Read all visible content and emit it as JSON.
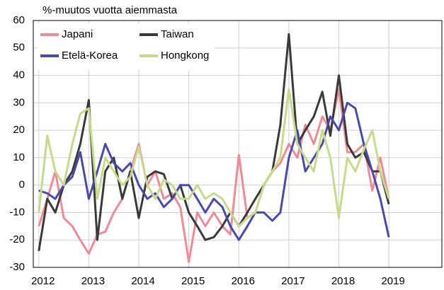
{
  "chart_data": {
    "type": "line",
    "ylabel": "%-muutos vuotta aiemmasta",
    "x": [
      2012,
      2012.17,
      2012.33,
      2012.5,
      2012.67,
      2012.83,
      2013,
      2013.17,
      2013.33,
      2013.5,
      2013.67,
      2013.83,
      2014,
      2014.17,
      2014.33,
      2014.5,
      2014.67,
      2014.83,
      2015,
      2015.17,
      2015.33,
      2015.5,
      2015.67,
      2015.83,
      2016,
      2016.17,
      2016.33,
      2016.5,
      2016.67,
      2016.83,
      2017,
      2017.17,
      2017.33,
      2017.5,
      2017.67,
      2017.83,
      2018,
      2018.17,
      2018.33,
      2018.5,
      2018.67,
      2018.83,
      2019
    ],
    "series": [
      {
        "name": "Japani",
        "color": "#ef8a96",
        "values": [
          -15,
          -5,
          5,
          -12,
          -15,
          -20,
          -25,
          -18,
          -17,
          -10,
          -5,
          5,
          15,
          0,
          5,
          -5,
          -3,
          -8,
          -28,
          -10,
          -15,
          -10,
          -15,
          -18,
          11,
          -12,
          -10,
          0,
          5,
          8,
          15,
          10,
          22,
          15,
          25,
          20,
          35,
          12,
          12,
          15,
          -2,
          10,
          -5
        ]
      },
      {
        "name": "Taiwan",
        "color": "#3a3a3a",
        "values": [
          -24,
          -5,
          -10,
          0,
          5,
          15,
          31,
          -20,
          5,
          10,
          -5,
          5,
          -12,
          3,
          5,
          4,
          -5,
          0,
          -10,
          -15,
          -20,
          -19,
          -15,
          -10,
          -15,
          -10,
          -5,
          0,
          5,
          22,
          55,
          15,
          20,
          25,
          34,
          18,
          40,
          15,
          10,
          12,
          5,
          5,
          -7
        ]
      },
      {
        "name": "Etelä-Korea",
        "color": "#4a4aa8",
        "values": [
          -2,
          -3,
          -5,
          0,
          3,
          12,
          -5,
          5,
          15,
          8,
          5,
          8,
          0,
          -5,
          -3,
          -8,
          -5,
          0,
          0,
          -5,
          -10,
          -5,
          -8,
          -15,
          -20,
          -15,
          -10,
          -10,
          -13,
          -10,
          10,
          20,
          5,
          10,
          15,
          25,
          20,
          30,
          28,
          15,
          5,
          -5,
          -19
        ]
      },
      {
        "name": "Hongkong",
        "color": "#c6da8c",
        "values": [
          -10,
          18,
          5,
          0,
          15,
          26,
          28,
          -5,
          10,
          5,
          0,
          3,
          14,
          0,
          -5,
          2,
          0,
          -5,
          -5,
          0,
          -5,
          -3,
          -5,
          -10,
          -15,
          -12,
          -10,
          0,
          5,
          10,
          35,
          15,
          10,
          5,
          20,
          10,
          -12,
          10,
          5,
          13,
          20,
          5,
          -5
        ]
      }
    ],
    "xlim": [
      2011.89,
      2020.06
    ],
    "xticks": [
      2012,
      2013,
      2014,
      2015,
      2016,
      2017,
      2018,
      2019
    ],
    "ylim": [
      -30,
      60
    ],
    "yticks": [
      -30,
      -20,
      -10,
      0,
      10,
      20,
      30,
      40,
      50,
      60
    ],
    "grid": true,
    "legend": "upper left"
  }
}
